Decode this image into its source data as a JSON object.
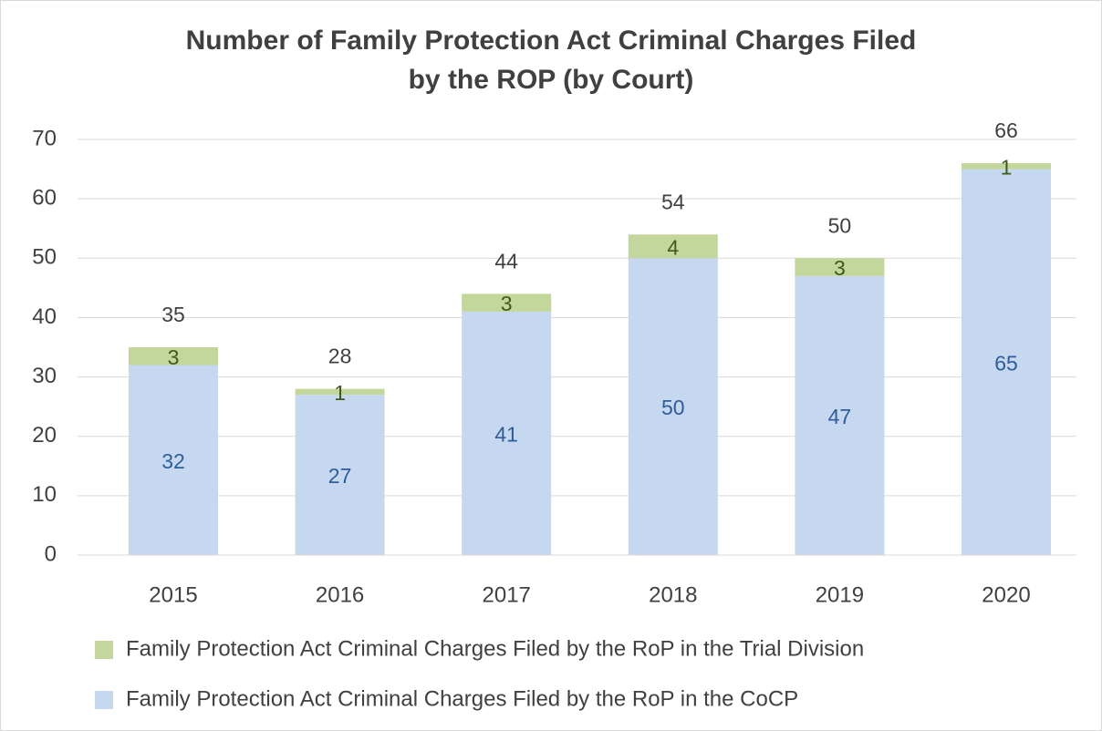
{
  "chart_data": {
    "type": "stacked_bar",
    "title": "Number of Family Protection Act Criminal Charges Filed",
    "subtitle": "by the ROP (by Court)",
    "categories": [
      "2015",
      "2016",
      "2017",
      "2018",
      "2019",
      "2020"
    ],
    "series": [
      {
        "name": "Family Protection Act Criminal Charges Filed by the RoP in the CoCP",
        "color": "#c6d7f0",
        "label_color": "#2f5d9a",
        "values": [
          32,
          27,
          41,
          50,
          47,
          65
        ]
      },
      {
        "name": "Family Protection Act Criminal Charges Filed by the RoP in the Trial Division",
        "color": "#c3d69b",
        "label_color": "#3f5a1a",
        "values": [
          3,
          1,
          3,
          4,
          3,
          1
        ]
      }
    ],
    "totals": [
      35,
      28,
      44,
      54,
      50,
      66
    ],
    "ylim": [
      0,
      70
    ],
    "yticks": [
      0,
      10,
      20,
      30,
      40,
      50,
      60,
      70
    ],
    "grid": true
  }
}
